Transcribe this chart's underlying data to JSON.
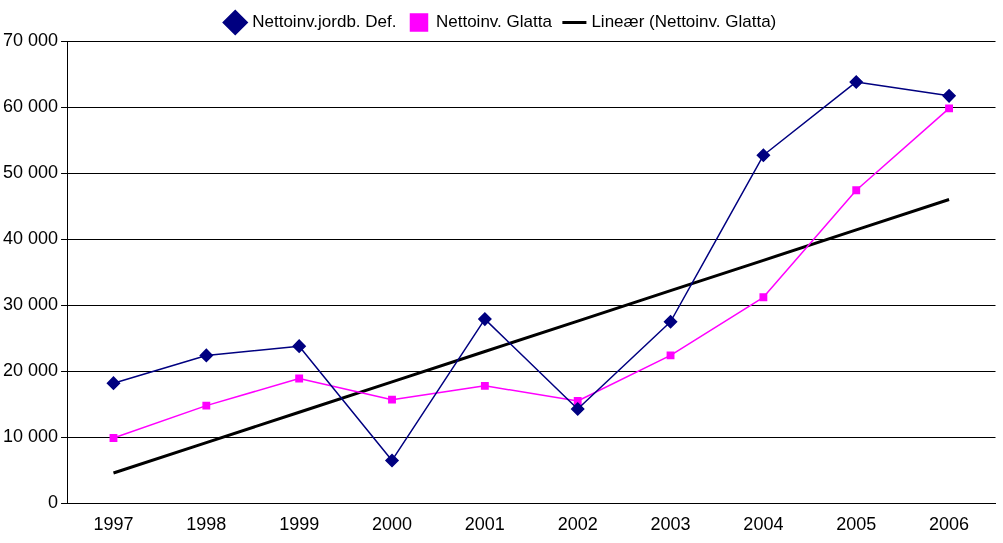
{
  "chart_data": {
    "type": "line",
    "categories": [
      "1997",
      "1998",
      "1999",
      "2000",
      "2001",
      "2002",
      "2003",
      "2004",
      "2005",
      "2006"
    ],
    "series": [
      {
        "name": "Nettoinv.jordb. Def.",
        "color": "#000080",
        "marker": "diamond",
        "values": [
          18200,
          22400,
          23800,
          6500,
          27900,
          14300,
          27500,
          52700,
          63800,
          61700
        ]
      },
      {
        "name": "Nettoinv. Glatta",
        "color": "#ff00ff",
        "marker": "square",
        "values": [
          9900,
          14800,
          18900,
          15700,
          17800,
          15500,
          22400,
          31200,
          47400,
          59800
        ]
      },
      {
        "name": "Lineær (Nettoinv. Glatta)",
        "color": "#000000",
        "marker": "none",
        "values": [
          4600,
          9200,
          13800,
          18400,
          23000,
          27600,
          32200,
          36800,
          41400,
          46000
        ]
      }
    ],
    "ylim": [
      0,
      70000
    ],
    "yticks": [
      0,
      {
        "value": 10000,
        "label": "10 000"
      },
      {
        "value": 20000,
        "label": "20 000"
      },
      {
        "value": 30000,
        "label": "30 000"
      },
      {
        "value": 40000,
        "label": "40 000"
      },
      {
        "value": 50000,
        "label": "50 000"
      },
      {
        "value": 60000,
        "label": "60 000"
      },
      {
        "value": 70000,
        "label": "70 000"
      }
    ],
    "grid": "y",
    "legend": "top"
  }
}
